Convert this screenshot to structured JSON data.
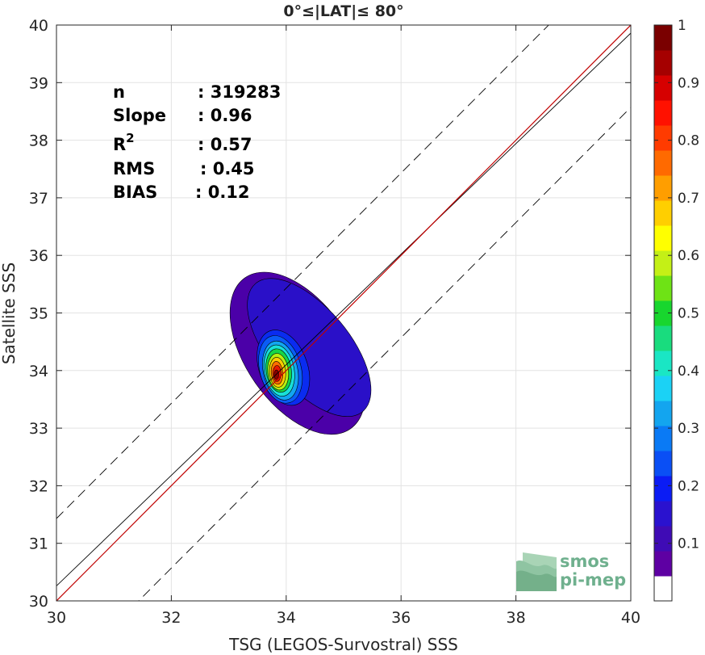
{
  "chart_data": {
    "type": "heatmap",
    "title": "0°≤|LAT|≤ 80°",
    "xlabel": "TSG (LEGOS-Survostral) SSS",
    "ylabel": "Satellite SSS",
    "xlim": [
      30,
      40
    ],
    "ylim": [
      30,
      40
    ],
    "xticks": [
      30,
      32,
      34,
      36,
      38,
      40
    ],
    "yticks": [
      30,
      31,
      32,
      33,
      34,
      35,
      36,
      37,
      38,
      39,
      40
    ],
    "grid": true,
    "stats": [
      {
        "label": "n",
        "value": ": 319283"
      },
      {
        "label": "Slope",
        "value": ": 0.96"
      },
      {
        "label": "R",
        "sup": "2",
        "value": ": 0.57"
      },
      {
        "label": "RMS",
        "value": ": 0.45"
      },
      {
        "label": "BIAS",
        "value": ": 0.12"
      }
    ],
    "lines": {
      "one_to_one": {
        "color": "#c00000",
        "x": [
          30,
          40
        ],
        "y": [
          30,
          40
        ]
      },
      "regression": {
        "color": "#000000",
        "x": [
          30,
          40
        ],
        "y": [
          30.26,
          39.86
        ]
      },
      "plus_band": {
        "color": "#000000",
        "dash": true,
        "x": [
          30,
          40
        ],
        "y": [
          31.43,
          41.43
        ]
      },
      "minus_band": {
        "color": "#000000",
        "dash": true,
        "x": [
          30,
          40
        ],
        "y": [
          28.57,
          38.57
        ]
      }
    },
    "density_levels": [
      {
        "level": 0.05,
        "color": "#4b00a8",
        "cx": 34.2,
        "cy": 34.3,
        "rx": 0.9,
        "ry": 1.6,
        "rot": -35
      },
      {
        "level": 0.1,
        "color": "#2a10c8",
        "cx": 34.4,
        "cy": 34.4,
        "rx": 0.7,
        "ry": 1.45,
        "rot": -40
      },
      {
        "level": 0.15,
        "color": "#0a2cf0",
        "cx": 33.95,
        "cy": 34.05,
        "rx": 0.42,
        "ry": 0.68,
        "rot": -20
      },
      {
        "level": 0.2,
        "color": "#0a5cf5",
        "cx": 33.9,
        "cy": 34.02,
        "rx": 0.36,
        "ry": 0.6,
        "rot": -15
      },
      {
        "level": 0.3,
        "color": "#12a6f0",
        "cx": 33.9,
        "cy": 34.0,
        "rx": 0.3,
        "ry": 0.52,
        "rot": -12
      },
      {
        "level": 0.4,
        "color": "#18e0d8",
        "cx": 33.88,
        "cy": 34.0,
        "rx": 0.26,
        "ry": 0.45,
        "rot": -10
      },
      {
        "level": 0.5,
        "color": "#16d548",
        "cx": 33.87,
        "cy": 34.0,
        "rx": 0.22,
        "ry": 0.38,
        "rot": -8
      },
      {
        "level": 0.6,
        "color": "#b6ef12",
        "cx": 33.86,
        "cy": 33.98,
        "rx": 0.18,
        "ry": 0.32,
        "rot": -6
      },
      {
        "level": 0.7,
        "color": "#ffcc00",
        "cx": 33.85,
        "cy": 33.97,
        "rx": 0.14,
        "ry": 0.26,
        "rot": -5
      },
      {
        "level": 0.8,
        "color": "#ff6e00",
        "cx": 33.84,
        "cy": 33.96,
        "rx": 0.1,
        "ry": 0.2,
        "rot": -5
      },
      {
        "level": 0.9,
        "color": "#e81800",
        "cx": 33.84,
        "cy": 33.95,
        "rx": 0.07,
        "ry": 0.14,
        "rot": 0
      },
      {
        "level": 1.0,
        "color": "#8a0000",
        "cx": 33.83,
        "cy": 33.93,
        "rx": 0.04,
        "ry": 0.08,
        "rot": 0
      }
    ],
    "colorbar": {
      "min": 0,
      "max": 1,
      "ticks": [
        0.1,
        0.2,
        0.3,
        0.4,
        0.5,
        0.6,
        0.7,
        0.8,
        0.9,
        1
      ],
      "tick_labels": [
        "0.1",
        "0.2",
        "0.3",
        "0.4",
        "0.5",
        "0.6",
        "0.7",
        "0.8",
        "0.9",
        "1"
      ],
      "colors": [
        "#ffffff",
        "#5e00a3",
        "#3f0bb5",
        "#2a12cf",
        "#0b1cf5",
        "#0a4ff5",
        "#0a7af5",
        "#13a5ef",
        "#1bd2f5",
        "#1ae6c4",
        "#19dc7e",
        "#18d62e",
        "#6ee315",
        "#c4f016",
        "#ffff00",
        "#ffcf00",
        "#ff9e00",
        "#ff6a00",
        "#ff3b00",
        "#ff1100",
        "#d60000",
        "#a50000",
        "#7a0000"
      ]
    }
  },
  "logo": {
    "line1": "smos",
    "line2": "pi-mep",
    "color": "#6fb08e"
  }
}
